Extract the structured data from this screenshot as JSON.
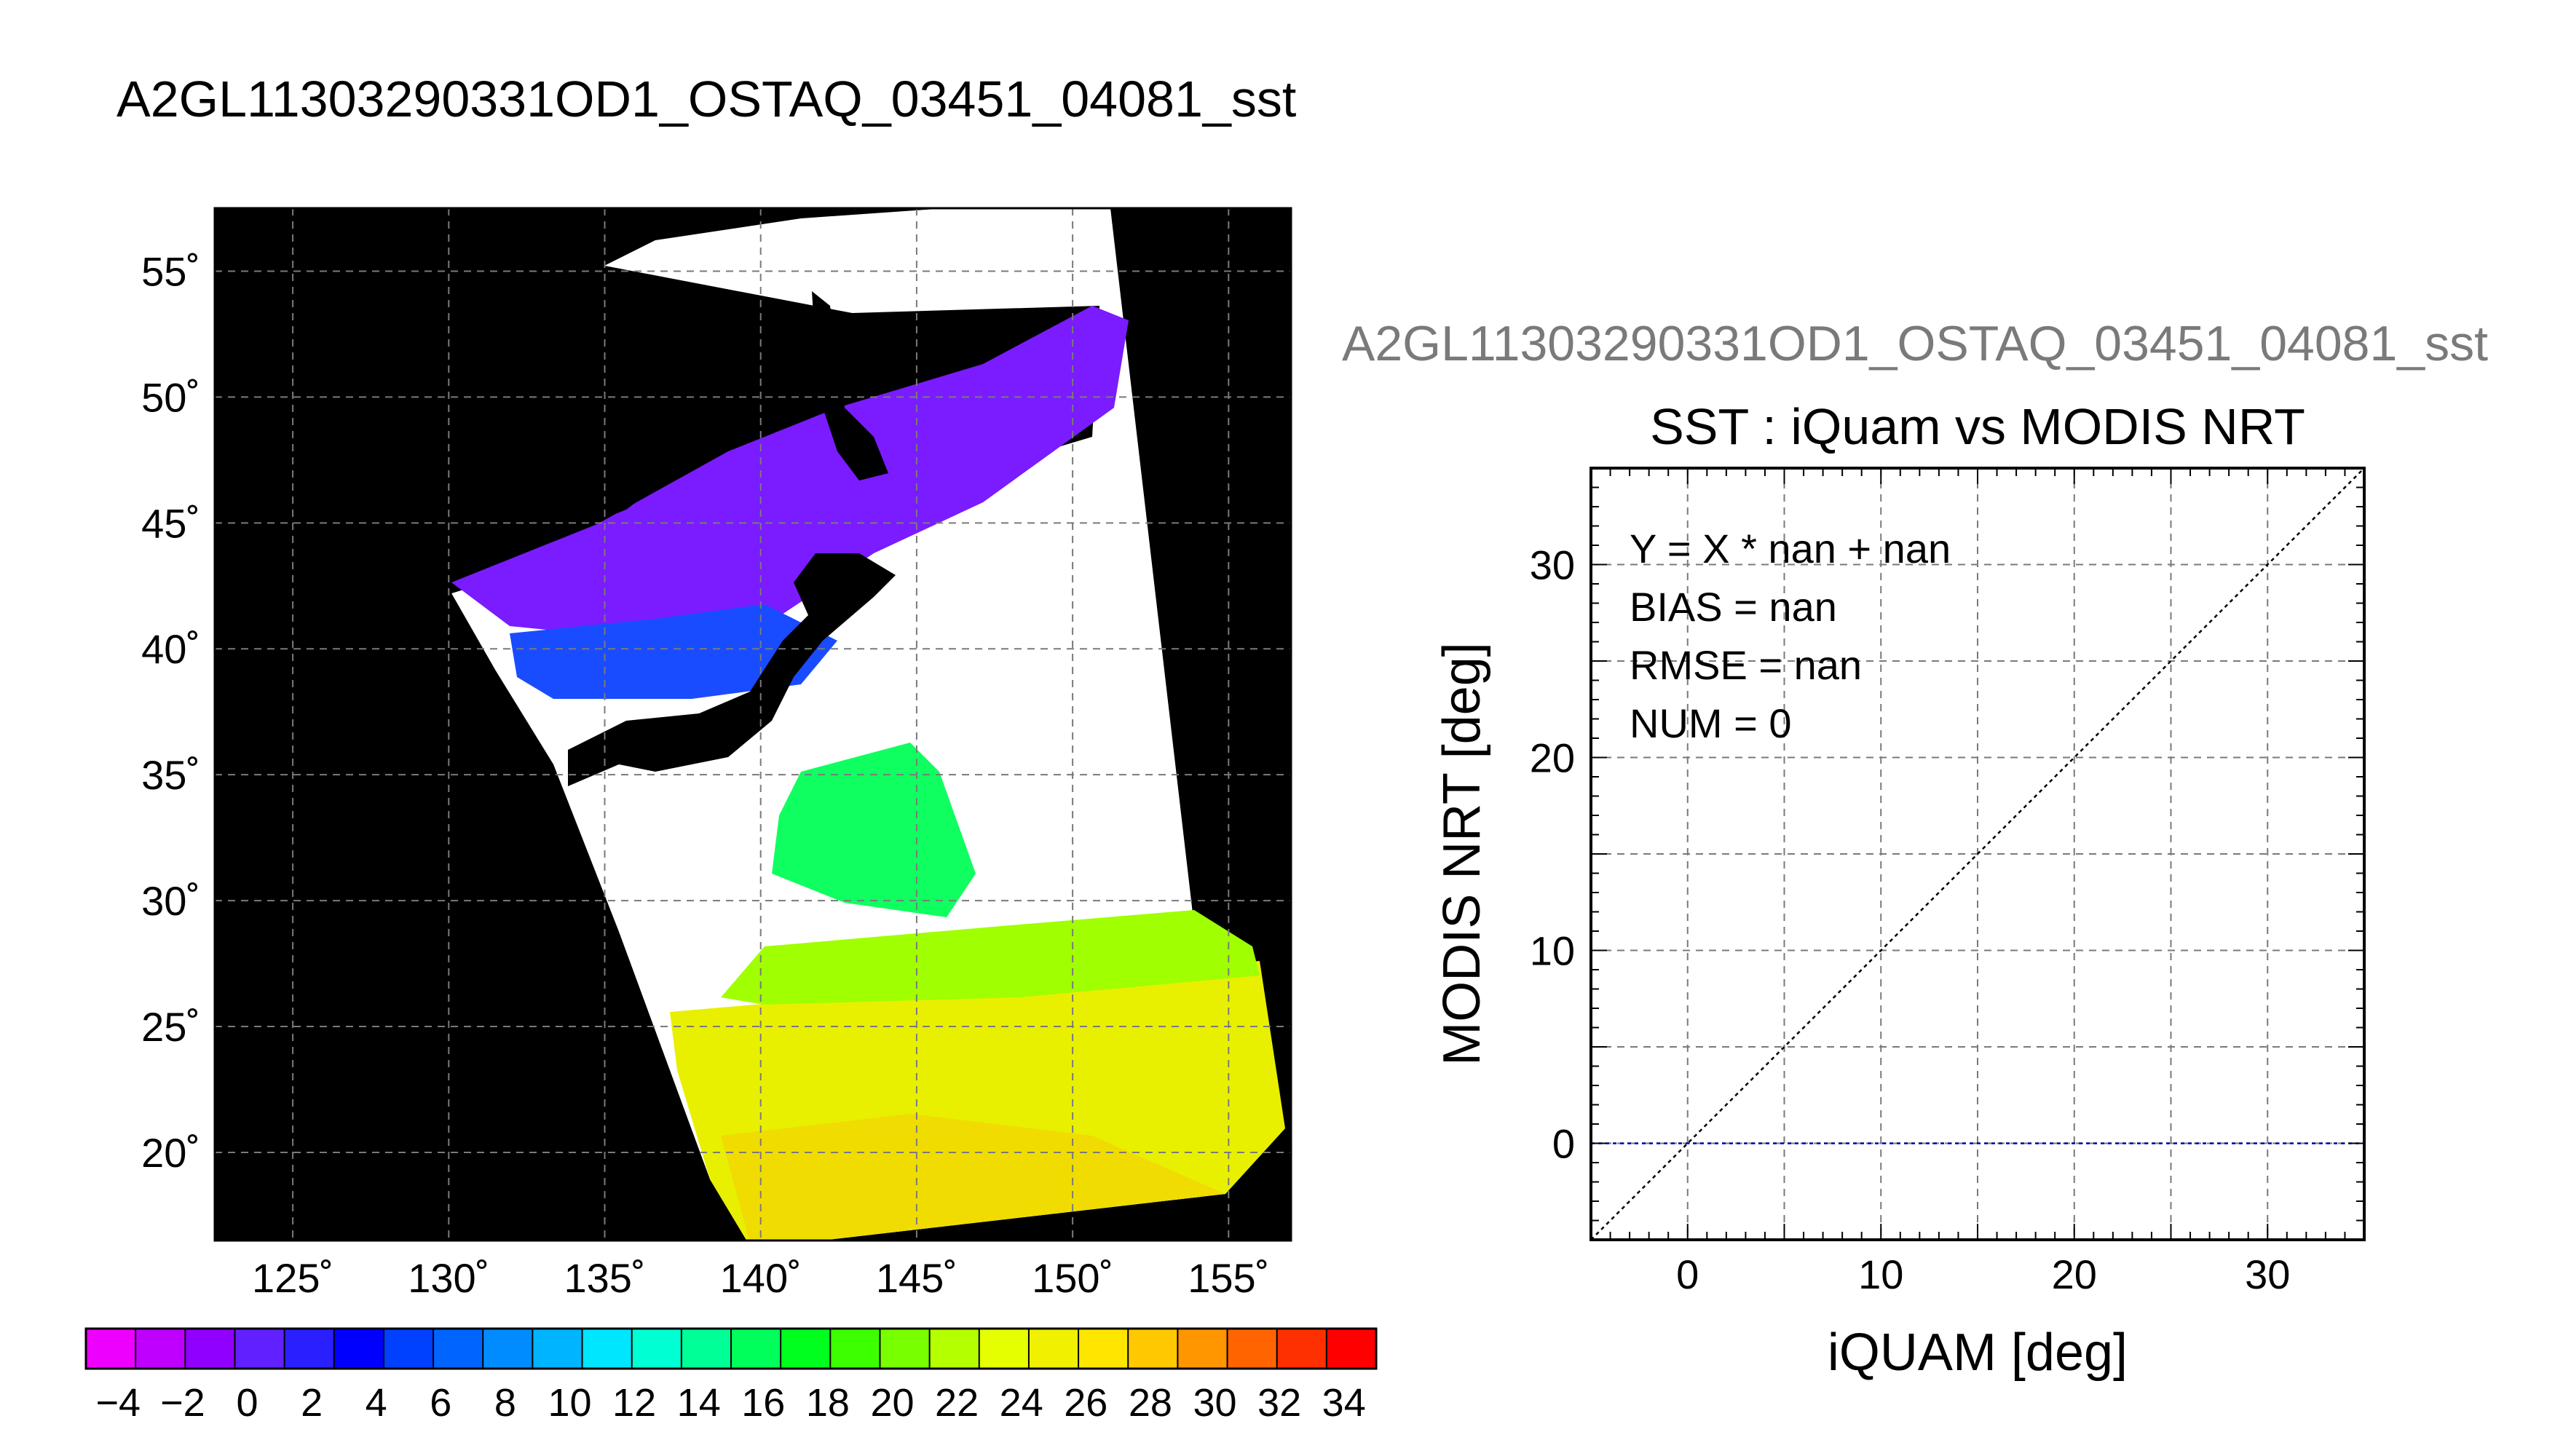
{
  "map_title": "A2GL11303290331OD1_OSTAQ_03451_04081_sst",
  "scatter_file_title": "A2GL11303290331OD1_OSTAQ_03451_04081_sst",
  "chart_data": [
    {
      "type": "heatmap",
      "title": "A2GL11303290331OD1_OSTAQ_03451_04081_sst",
      "lon_range": [
        122.5,
        157
      ],
      "lat_range": [
        16.5,
        57.5
      ],
      "lon_ticks": [
        "125˚",
        "130˚",
        "135˚",
        "140˚",
        "145˚",
        "150˚",
        "155˚"
      ],
      "lat_ticks": [
        "55˚",
        "50˚",
        "45˚",
        "40˚",
        "35˚",
        "30˚",
        "25˚",
        "20˚"
      ],
      "grid": true,
      "land_color": "#000000",
      "cloud_color": "#ffffff",
      "colorbar": {
        "min": -5,
        "max": 35,
        "tick_labels": [
          "−4",
          "−2",
          "0",
          "2",
          "4",
          "6",
          "8",
          "10",
          "12",
          "14",
          "16",
          "18",
          "20",
          "22",
          "24",
          "26",
          "28",
          "30",
          "32",
          "34"
        ],
        "colors": [
          "#ee00ff",
          "#bf00ff",
          "#9000ff",
          "#6020ff",
          "#2a1fff",
          "#0000ff",
          "#0040ff",
          "#0064ff",
          "#008cff",
          "#00b4ff",
          "#00e6ff",
          "#00ffd2",
          "#00ff96",
          "#00ff5a",
          "#00ff1e",
          "#3cff00",
          "#78ff00",
          "#b4ff00",
          "#e6ff00",
          "#f0f000",
          "#ffe600",
          "#ffc800",
          "#ff9600",
          "#ff6400",
          "#ff3000",
          "#ff0000"
        ]
      }
    },
    {
      "type": "scatter",
      "title": "SST : iQuam vs MODIS NRT",
      "xlabel": "iQUAM [deg]",
      "ylabel": "MODIS NRT [deg]",
      "xlim": [
        -5,
        35
      ],
      "ylim": [
        -5,
        35
      ],
      "xticks": [
        0,
        10,
        20,
        30
      ],
      "yticks": [
        0,
        10,
        20,
        30
      ],
      "grid": true,
      "annotations": [
        "Y = X * nan + nan",
        "BIAS = nan",
        "RMSE = nan",
        "NUM = 0"
      ],
      "points": [],
      "one_to_one_line": {
        "from": [
          -5,
          -5
        ],
        "to": [
          35,
          35
        ],
        "color": "#000000",
        "style": "dotted"
      },
      "fit_line": {
        "y": 0,
        "color": "#0000aa",
        "style": "dotted"
      }
    }
  ]
}
